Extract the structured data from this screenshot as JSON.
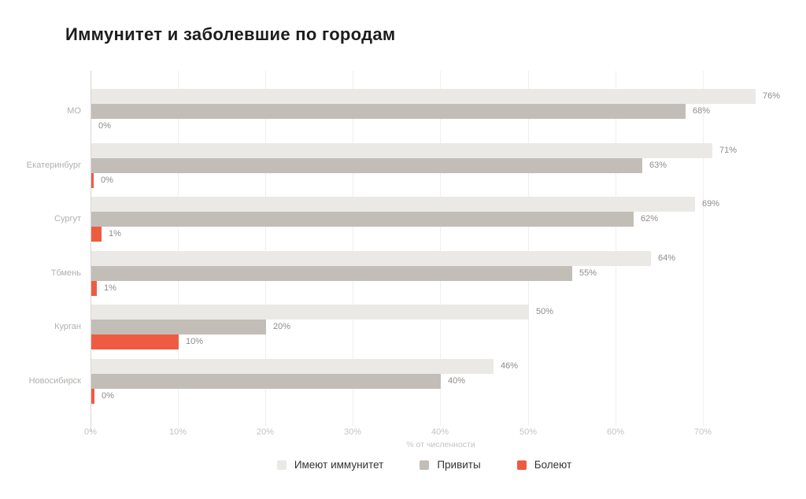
{
  "title": "Иммунитет и заболевшие по городам",
  "chart_data": {
    "type": "bar",
    "orientation": "horizontal",
    "title": "Иммунитет и заболевшие по городам",
    "xlabel": "% от численности",
    "categories": [
      "МО",
      "Екатеринбург",
      "Сургут",
      "Тбмень",
      "Курган",
      "Новосибирск"
    ],
    "series": [
      {
        "name": "Имеют иммунитет",
        "color": "#eae9e6",
        "values": [
          76,
          71,
          69,
          64,
          50,
          46
        ],
        "labels": [
          "76%",
          "71%",
          "69%",
          "64%",
          "50%",
          "46%"
        ]
      },
      {
        "name": "Привиты",
        "color": "#c3bdb7",
        "values": [
          68,
          63,
          62,
          55,
          20,
          40
        ],
        "labels": [
          "68%",
          "63%",
          "62%",
          "55%",
          "20%",
          "40%"
        ]
      },
      {
        "name": "Болеют",
        "color": "#ef5b41",
        "values": [
          0,
          0.3,
          1.2,
          0.6,
          10,
          0.4
        ],
        "labels": [
          "0%",
          "0%",
          "1%",
          "1%",
          "10%",
          "0%"
        ]
      }
    ],
    "x_ticks": [
      "0%",
      "10%",
      "20%",
      "30%",
      "40%",
      "50%",
      "60%",
      "70%"
    ],
    "xlim": [
      0,
      70
    ],
    "grid": "vertical",
    "legend_position": "bottom"
  }
}
